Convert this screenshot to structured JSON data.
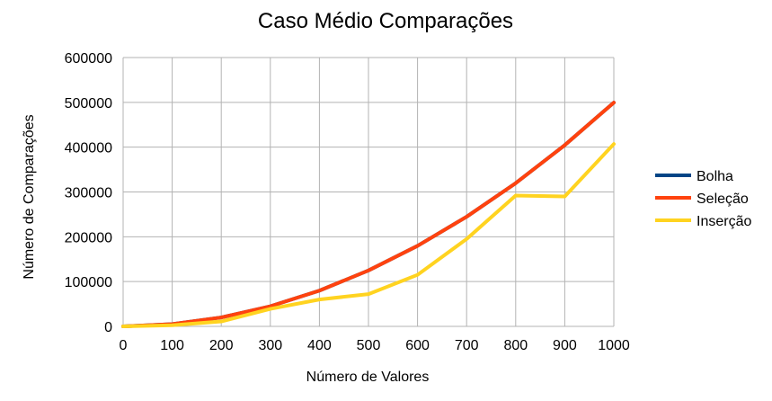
{
  "chart_data": {
    "type": "line",
    "title": "Caso Médio Comparações",
    "xlabel": "Número de Valores",
    "ylabel": "Número de Comparações",
    "x": [
      0,
      100,
      200,
      300,
      400,
      500,
      600,
      700,
      800,
      900,
      1000
    ],
    "x_tick_labels": [
      "0",
      "100",
      "200",
      "300",
      "400",
      "500",
      "600",
      "700",
      "800",
      "900",
      "1000"
    ],
    "ylim": [
      0,
      600000
    ],
    "y_ticks": [
      0,
      100000,
      200000,
      300000,
      400000,
      500000,
      600000
    ],
    "y_tick_labels": [
      "0",
      "100000",
      "200000",
      "300000",
      "400000",
      "500000",
      "600000"
    ],
    "grid": true,
    "legend_position": "right",
    "series": [
      {
        "name": "Bolha",
        "color": "#004586",
        "values": [
          0,
          4950,
          19900,
          44850,
          79800,
          124750,
          179700,
          244650,
          319600,
          404550,
          499500
        ]
      },
      {
        "name": "Seleção",
        "color": "#ff420e",
        "values": [
          0,
          4950,
          19900,
          44850,
          79800,
          124750,
          179700,
          244650,
          319600,
          404550,
          499500
        ]
      },
      {
        "name": "Inserção",
        "color": "#ffd320",
        "values": [
          0,
          2500,
          11000,
          39000,
          60000,
          72000,
          115000,
          195000,
          292000,
          290000,
          407000
        ]
      }
    ]
  }
}
